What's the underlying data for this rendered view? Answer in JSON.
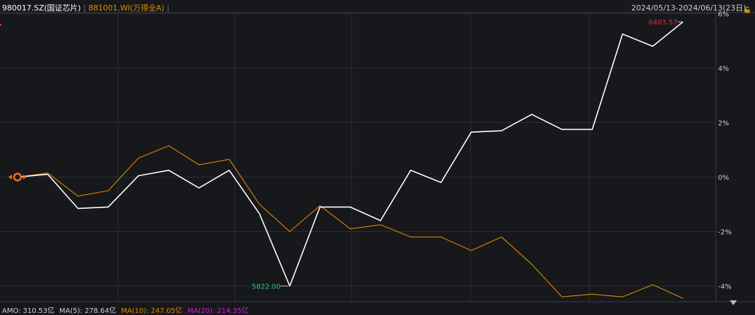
{
  "header": {
    "series1_label": "980017.SZ(国证芯片)",
    "separator": "|",
    "series2_label": "881001.WI(万得全A)",
    "date_range": "2024/05/13-2024/06/13(23日)"
  },
  "footer": {
    "amo": "AMO: 310.53亿",
    "ma5": "MA(5): 278.64亿",
    "ma10": "MA(10): 247.05亿",
    "ma20": "MA(20): 214.35亿"
  },
  "colors": {
    "background": "#16181c",
    "series1": "#ffffff",
    "series2": "#e08a00",
    "max_label": "#e0303a",
    "min_label": "#2cc36b",
    "ma10": "#e08a00",
    "ma20": "#d020d0",
    "grid": "#2a2d33",
    "axis_text": "#cfcfcf"
  },
  "icons": [
    "lock-icon",
    "dropdown-triangle-icon",
    "start-marker-icon"
  ],
  "chart_data": {
    "type": "line",
    "x": [
      1,
      2,
      3,
      4,
      5,
      6,
      7,
      8,
      9,
      10,
      11,
      12,
      13,
      14,
      15,
      16,
      17,
      18,
      19,
      20,
      21,
      22,
      23
    ],
    "series": [
      {
        "name": "980017.SZ(国证芯片)",
        "values": [
          0,
          0.1,
          -1.15,
          -1.1,
          0.05,
          0.25,
          -0.4,
          0.25,
          -1.35,
          -4.0,
          -1.1,
          -1.1,
          -1.6,
          0.25,
          -0.2,
          1.65,
          1.7,
          2.3,
          1.75,
          1.75,
          5.25,
          4.8,
          5.7
        ]
      },
      {
        "name": "881001.WI(万得全A)",
        "values": [
          0,
          0.15,
          -0.7,
          -0.5,
          0.7,
          1.15,
          0.45,
          0.65,
          -1.0,
          -2.0,
          -1.05,
          -1.9,
          -1.75,
          -2.2,
          -2.2,
          -2.7,
          -2.2,
          -3.2,
          -4.4,
          -4.3,
          -4.4,
          -3.95,
          -4.45
        ]
      }
    ],
    "max_annotation": {
      "text": "6403.57",
      "index": 22
    },
    "min_annotation": {
      "text": "5822.00",
      "index": 9
    },
    "y_ticks": [
      6,
      4,
      2,
      0,
      -2,
      -4
    ],
    "y_tick_labels": [
      "6%",
      "4%",
      "2%",
      "0%",
      "-2%",
      "-4%"
    ],
    "ylim": [
      -4.5,
      6.2
    ],
    "grid": true
  }
}
